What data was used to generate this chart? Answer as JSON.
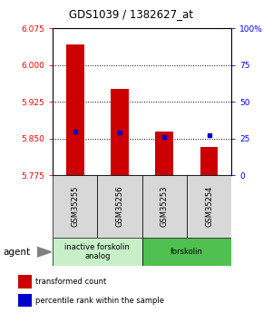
{
  "title": "GDS1039 / 1382627_at",
  "samples": [
    "GSM35255",
    "GSM35256",
    "GSM35253",
    "GSM35254"
  ],
  "red_values": [
    6.042,
    5.952,
    5.864,
    5.832
  ],
  "blue_values": [
    5.864,
    5.863,
    5.854,
    5.856
  ],
  "ymin": 5.775,
  "ymax": 6.075,
  "yticks_left": [
    5.775,
    5.85,
    5.925,
    6.0,
    6.075
  ],
  "yticks_right": [
    0,
    25,
    50,
    75,
    100
  ],
  "groups": [
    {
      "label": "inactive forskolin\nanalog",
      "samples": [
        0,
        1
      ],
      "color": "#c8f0c8"
    },
    {
      "label": "forskolin",
      "samples": [
        2,
        3
      ],
      "color": "#50c050"
    }
  ],
  "bar_color": "#cc0000",
  "blue_color": "#0000cc",
  "bg_color": "#d8d8d8",
  "plot_bg": "#ffffff",
  "agent_label": "agent",
  "legend_red": "transformed count",
  "legend_blue": "percentile rank within the sample",
  "bar_width": 0.4
}
